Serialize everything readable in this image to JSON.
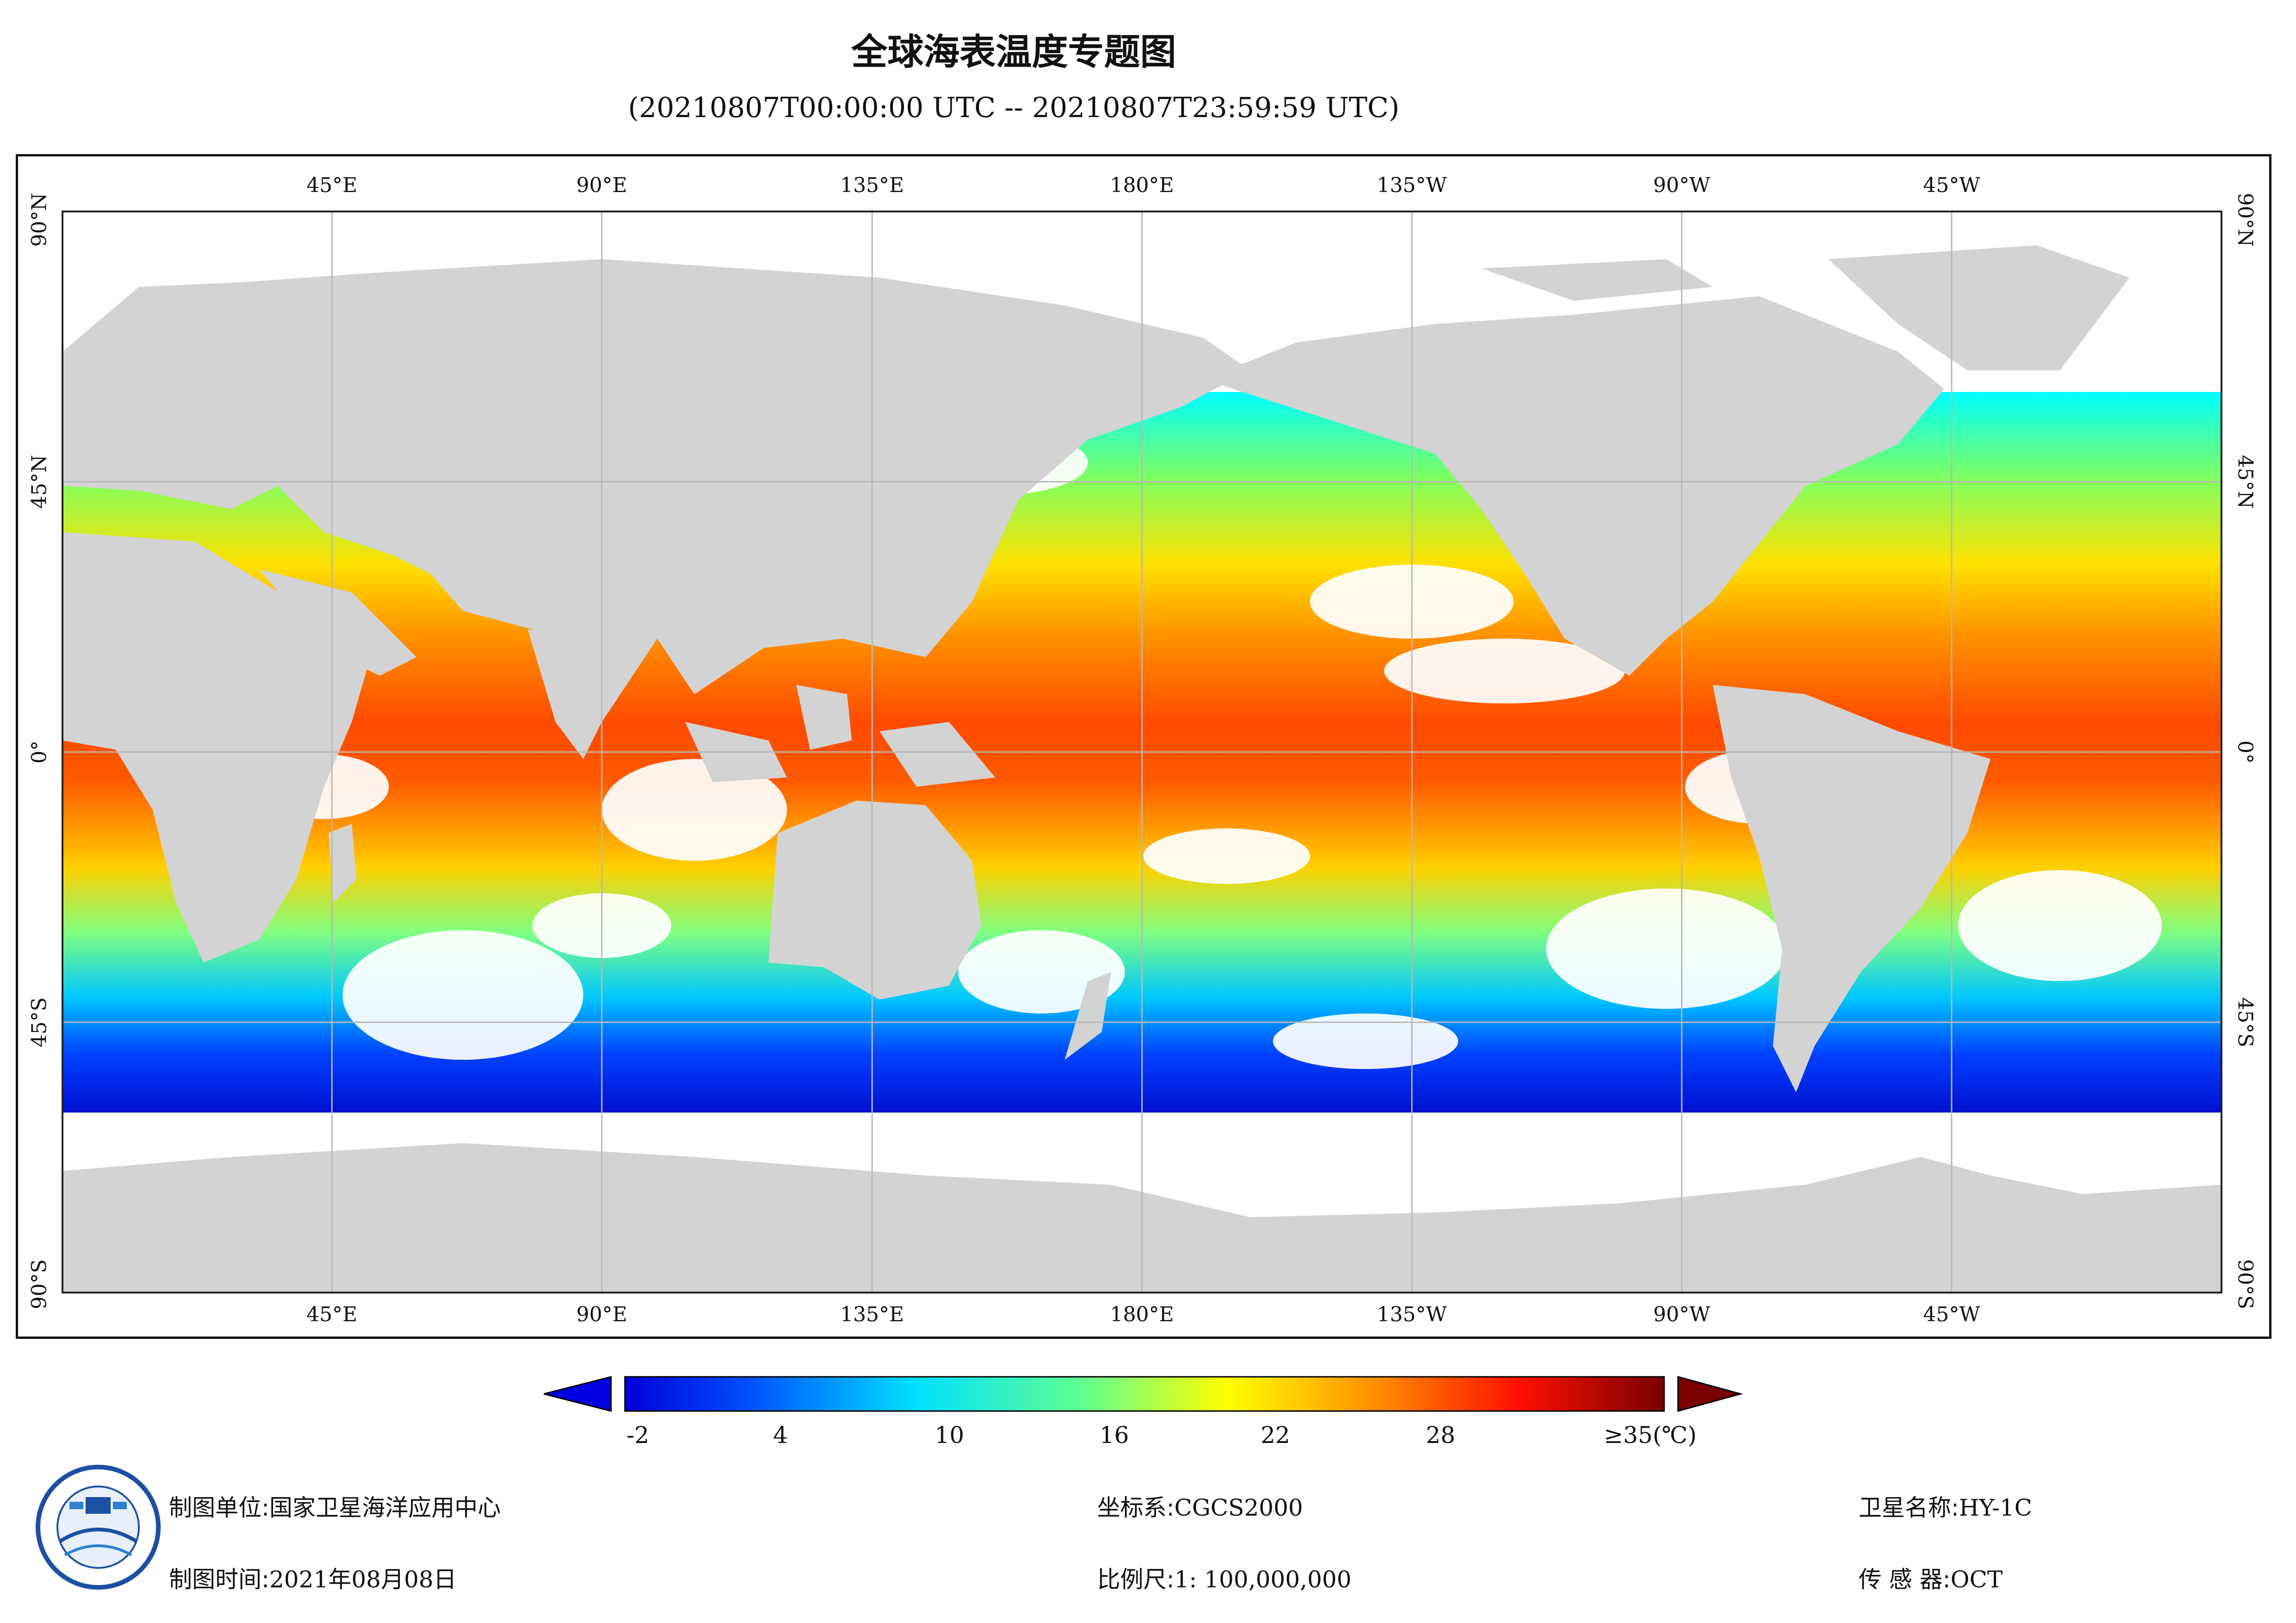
{
  "header": {
    "title": "全球海表温度专题图",
    "subtitle": "(20210807T00:00:00 UTC -- 20210807T23:59:59 UTC)"
  },
  "map": {
    "projection": "equirectangular",
    "central_meridian": "180°",
    "top_lon_labels": [
      "45°E",
      "90°E",
      "135°E",
      "180°E",
      "135°W",
      "90°W",
      "45°W"
    ],
    "bottom_lon_labels": [
      "45°E",
      "90°E",
      "135°E",
      "180°E",
      "135°W",
      "90°W",
      "45°W"
    ],
    "lat_labels": [
      "90°N",
      "45°N",
      "0°",
      "45°S",
      "90°S"
    ],
    "data_coverage": "60°N – 60°S",
    "land_color": "#d3d3d3",
    "no_data_color": "#ffffff",
    "graticule_color": "#b8b8b8"
  },
  "colorbar": {
    "ticks": [
      "-2",
      "4",
      "10",
      "16",
      "22",
      "28"
    ],
    "max_label": "≥35(℃)",
    "range_c": [
      -2,
      35
    ],
    "colors": [
      "#00008f",
      "#0000ff",
      "#0080ff",
      "#00ffff",
      "#80ff80",
      "#ffff00",
      "#ff8000",
      "#ff0000",
      "#800000"
    ]
  },
  "footer": {
    "unit_label": "制图单位:",
    "unit_value": "国家卫星海洋应用中心",
    "time_label": "制图时间:",
    "time_value": "2021年08月08日",
    "crs_label": "坐标系:",
    "crs_value": "CGCS2000",
    "scale_label": "比例尺:",
    "scale_value": "1: 100,000,000",
    "satellite_label": "卫星名称:",
    "satellite_value": "HY-1C",
    "sensor_label": "传 感 器:",
    "sensor_value": "OCT"
  }
}
